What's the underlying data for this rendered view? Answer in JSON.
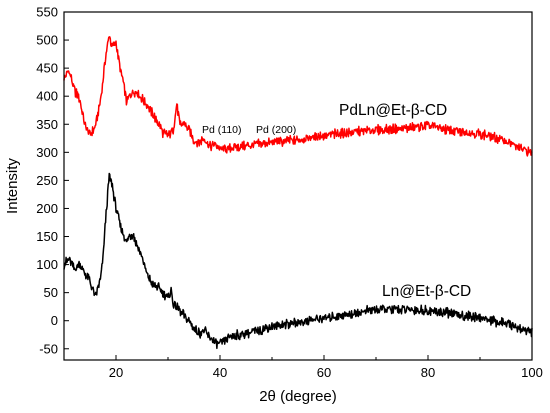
{
  "chart_data": {
    "type": "line",
    "title": "",
    "xlabel": "2θ (degree)",
    "ylabel": "Intensity",
    "xlim": [
      10,
      100
    ],
    "ylim": [
      -70,
      550
    ],
    "xticks": [
      20,
      40,
      60,
      80,
      100
    ],
    "yticks": [
      -50,
      0,
      50,
      100,
      150,
      200,
      250,
      300,
      350,
      400,
      450,
      500,
      550
    ],
    "grid": false,
    "legend": "none",
    "series": [
      {
        "name": "PdLn@Et-β-CD",
        "color": "#ff0000",
        "x": [
          10,
          11,
          12,
          13,
          14,
          15,
          16,
          17,
          18,
          18.7,
          19.2,
          20,
          20.7,
          21.5,
          22,
          23,
          24,
          25,
          26,
          27,
          28,
          29,
          30,
          31,
          31.7,
          32.3,
          33,
          34,
          35,
          36,
          37,
          38,
          39,
          40,
          42,
          44,
          46,
          48,
          50,
          55,
          60,
          65,
          70,
          75,
          80,
          85,
          90,
          95,
          98,
          100
        ],
        "y": [
          430,
          445,
          410,
          395,
          350,
          330,
          345,
          390,
          470,
          508,
          490,
          495,
          455,
          420,
          390,
          405,
          410,
          395,
          385,
          368,
          355,
          335,
          330,
          340,
          385,
          348,
          352,
          340,
          320,
          318,
          325,
          310,
          315,
          305,
          308,
          310,
          312,
          315,
          318,
          322,
          330,
          335,
          340,
          342,
          348,
          338,
          333,
          320,
          305,
          300
        ]
      },
      {
        "name": "Ln@Et-β-CD",
        "color": "#000000",
        "x": [
          10,
          11,
          12,
          13,
          14,
          15,
          16,
          17,
          17.5,
          18,
          18.7,
          19.3,
          20,
          21,
          22,
          22.5,
          23.3,
          24,
          25,
          26,
          27,
          28,
          29,
          30,
          30.6,
          31,
          32,
          33,
          34,
          35,
          36,
          37,
          38,
          39,
          40,
          42,
          44,
          46,
          48,
          50,
          55,
          60,
          65,
          70,
          75,
          80,
          85,
          90,
          95,
          98,
          100
        ],
        "y": [
          100,
          110,
          92,
          100,
          85,
          70,
          42,
          75,
          110,
          180,
          258,
          240,
          200,
          165,
          140,
          150,
          155,
          135,
          115,
          80,
          65,
          60,
          50,
          40,
          52,
          30,
          22,
          10,
          0,
          -15,
          -22,
          -18,
          -30,
          -38,
          -43,
          -28,
          -25,
          -20,
          -15,
          -10,
          -3,
          5,
          12,
          20,
          20,
          18,
          12,
          5,
          -5,
          -15,
          -20
        ]
      }
    ],
    "annotations": [
      "Pd (110)",
      "Pd (200)"
    ]
  }
}
